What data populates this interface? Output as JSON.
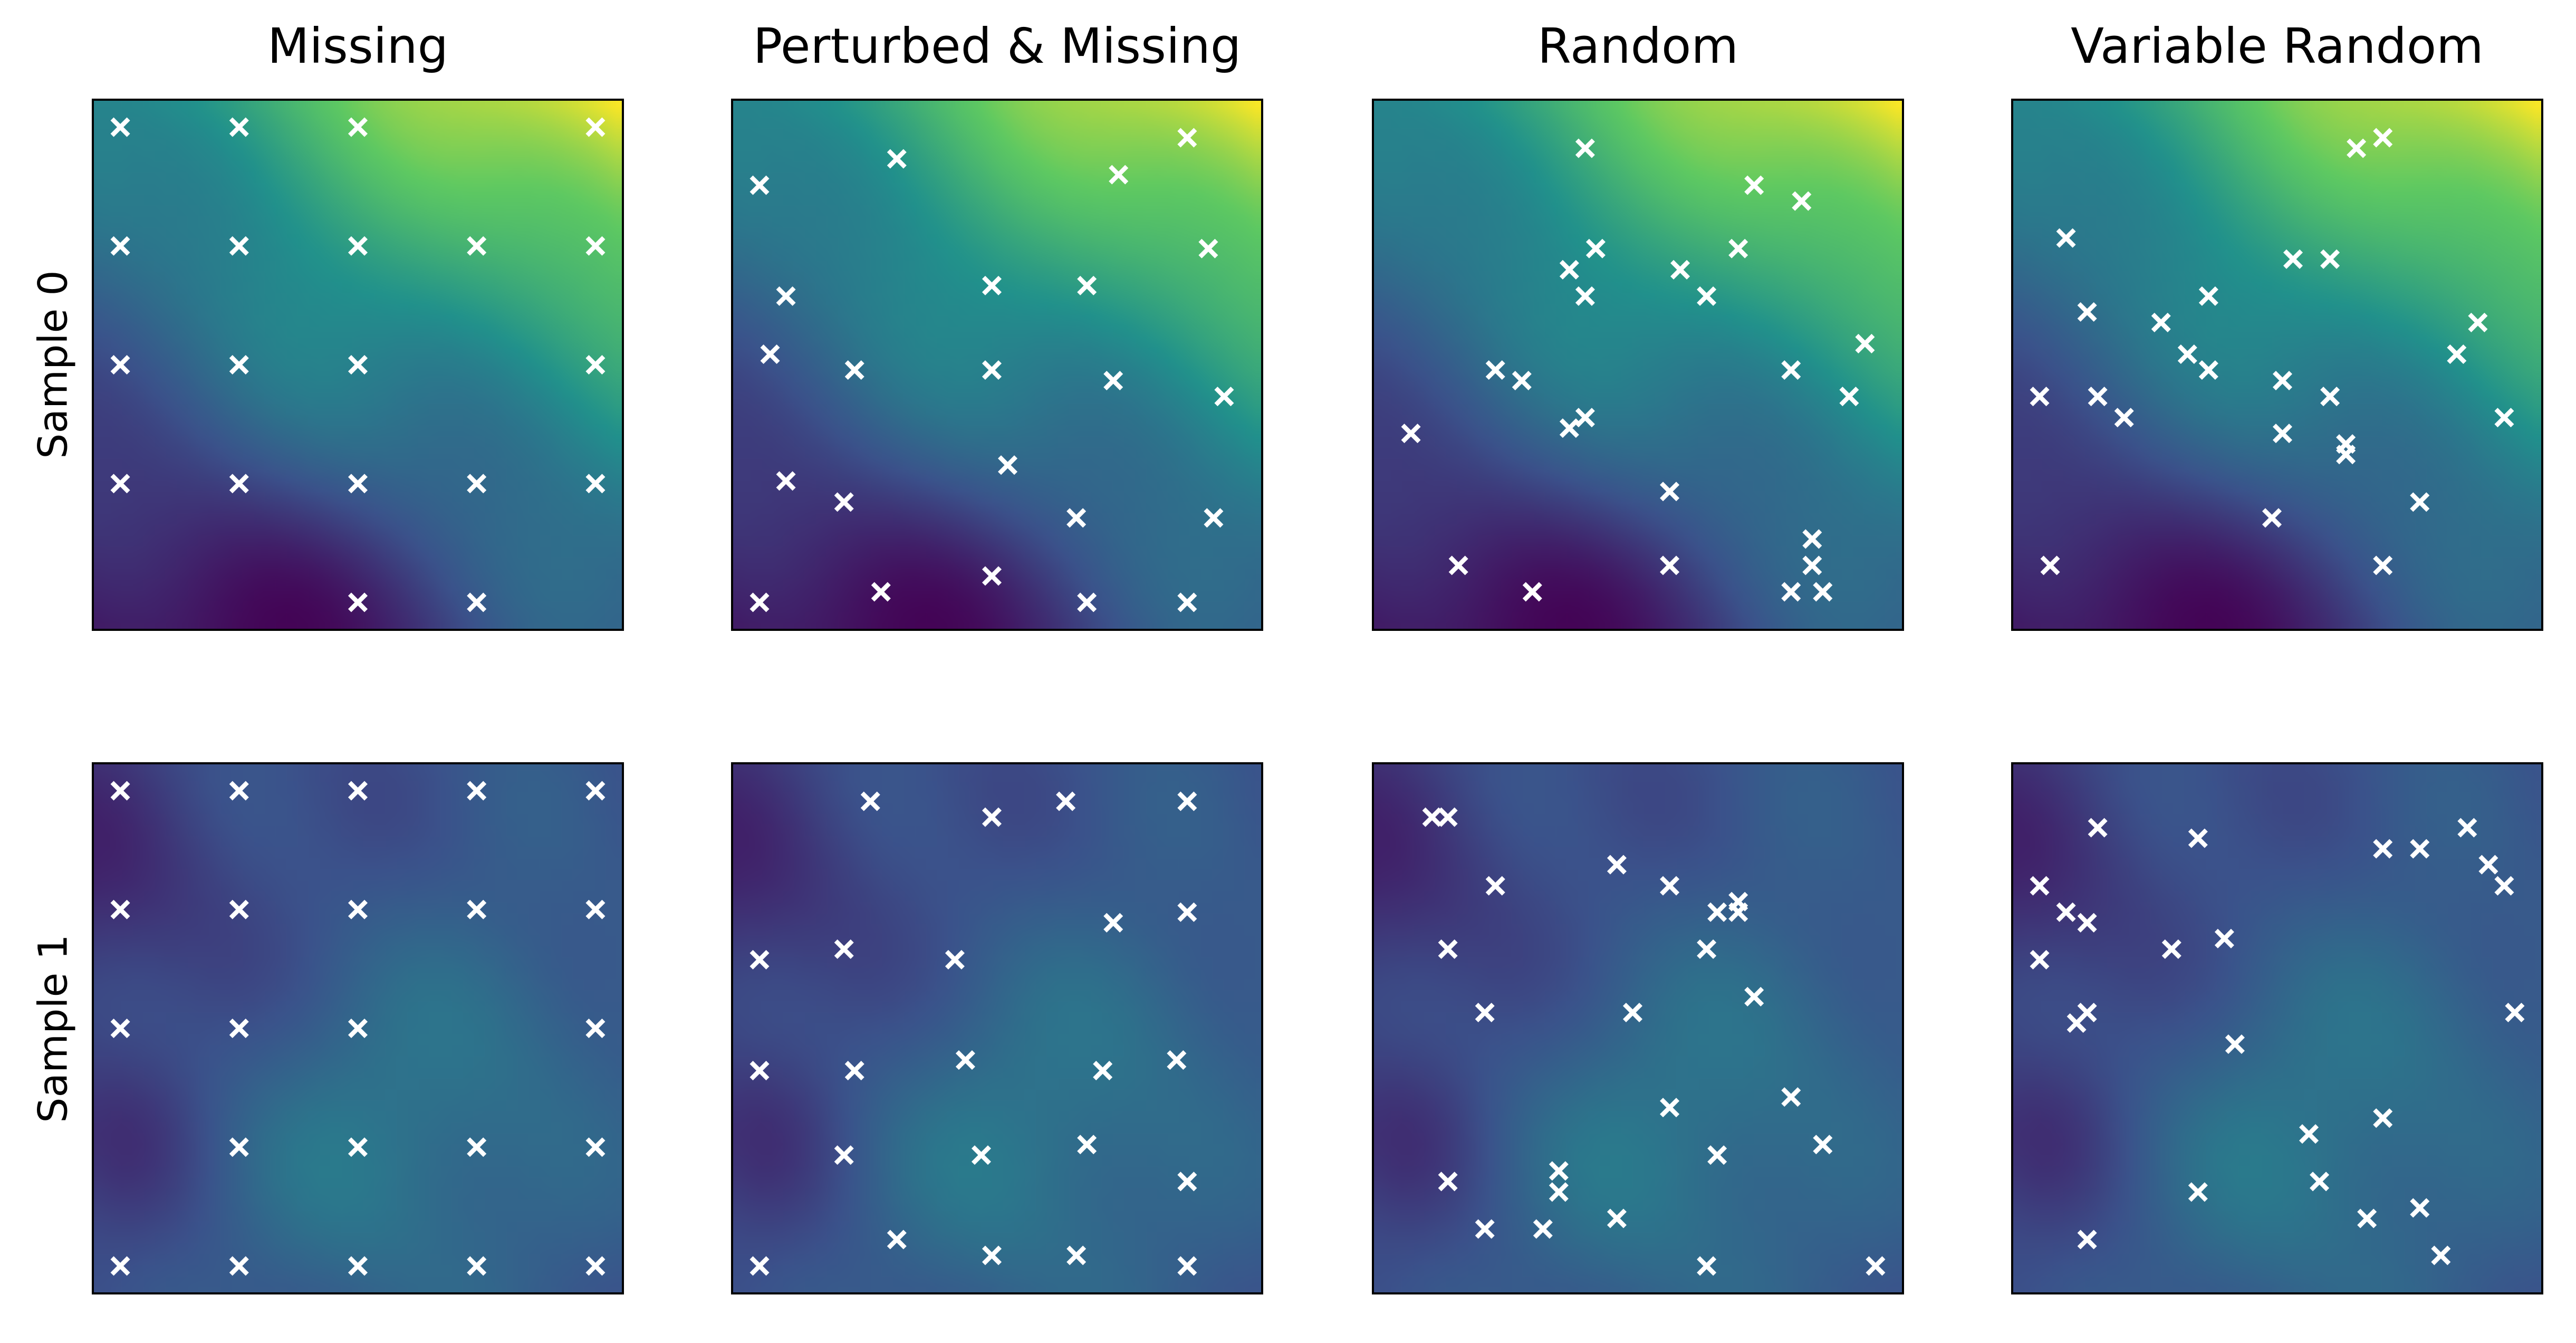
{
  "chart_data": {
    "type": "scatter",
    "description_of_axes": "hidden axes, data units 0-100 on both x and y (y up), markers drawn as white x over heatmap",
    "column_titles": [
      "Missing",
      "Perturbed & Missing",
      "Random",
      "Variable Random"
    ],
    "row_labels": [
      "Sample 0",
      "Sample 1"
    ],
    "xlim": [
      0,
      100
    ],
    "ylim": [
      0,
      100
    ],
    "marker_color": "#ffffff",
    "colormap": "viridis",
    "panels": [
      {
        "row": 0,
        "col": 0,
        "title": "Missing",
        "points": [
          [
            5,
            95
          ],
          [
            27.5,
            95
          ],
          [
            50,
            95
          ],
          [
            95,
            95
          ],
          [
            5,
            72.5
          ],
          [
            27.5,
            72.5
          ],
          [
            50,
            72.5
          ],
          [
            72.5,
            72.5
          ],
          [
            95,
            72.5
          ],
          [
            5,
            50
          ],
          [
            27.5,
            50
          ],
          [
            50,
            50
          ],
          [
            95,
            50
          ],
          [
            5,
            27.5
          ],
          [
            27.5,
            27.5
          ],
          [
            50,
            27.5
          ],
          [
            72.5,
            27.5
          ],
          [
            95,
            27.5
          ],
          [
            50,
            5
          ],
          [
            72.5,
            5
          ]
        ]
      },
      {
        "row": 0,
        "col": 1,
        "title": "Perturbed & Missing",
        "points": [
          [
            86,
            93
          ],
          [
            73,
            86
          ],
          [
            31,
            89
          ],
          [
            5,
            84
          ],
          [
            90,
            72
          ],
          [
            10,
            63
          ],
          [
            49,
            65
          ],
          [
            67,
            65
          ],
          [
            7,
            52
          ],
          [
            23,
            49
          ],
          [
            49,
            49
          ],
          [
            72,
            47
          ],
          [
            93,
            44
          ],
          [
            52,
            31
          ],
          [
            10,
            28
          ],
          [
            21,
            24
          ],
          [
            65,
            21
          ],
          [
            91,
            21
          ],
          [
            49,
            10
          ],
          [
            28,
            7
          ],
          [
            5,
            5
          ],
          [
            67,
            5
          ],
          [
            86,
            5
          ]
        ]
      },
      {
        "row": 0,
        "col": 2,
        "title": "Random",
        "points": [
          [
            40,
            91
          ],
          [
            72,
            84
          ],
          [
            81,
            81
          ],
          [
            42,
            72
          ],
          [
            69,
            72
          ],
          [
            37,
            68
          ],
          [
            58,
            68
          ],
          [
            40,
            63
          ],
          [
            63,
            63
          ],
          [
            93,
            54
          ],
          [
            23,
            49
          ],
          [
            28,
            47
          ],
          [
            79,
            49
          ],
          [
            90,
            44
          ],
          [
            40,
            40
          ],
          [
            37,
            38
          ],
          [
            7,
            37
          ],
          [
            56,
            26
          ],
          [
            83,
            17
          ],
          [
            16,
            12
          ],
          [
            56,
            12
          ],
          [
            83,
            12
          ],
          [
            30,
            7
          ],
          [
            79,
            7
          ],
          [
            85,
            7
          ]
        ]
      },
      {
        "row": 0,
        "col": 3,
        "title": "Variable Random",
        "points": [
          [
            65,
            91
          ],
          [
            70,
            93
          ],
          [
            10,
            74
          ],
          [
            53,
            70
          ],
          [
            60,
            70
          ],
          [
            14,
            60
          ],
          [
            37,
            63
          ],
          [
            28,
            58
          ],
          [
            88,
            58
          ],
          [
            33,
            52
          ],
          [
            37,
            49
          ],
          [
            84,
            52
          ],
          [
            5,
            44
          ],
          [
            16,
            44
          ],
          [
            51,
            47
          ],
          [
            60,
            44
          ],
          [
            21,
            40
          ],
          [
            93,
            40
          ],
          [
            51,
            37
          ],
          [
            63,
            35
          ],
          [
            63,
            33
          ],
          [
            77,
            24
          ],
          [
            49,
            21
          ],
          [
            7,
            12
          ],
          [
            70,
            12
          ]
        ]
      },
      {
        "row": 1,
        "col": 0,
        "title": "Missing",
        "points": [
          [
            5,
            95
          ],
          [
            27.5,
            95
          ],
          [
            50,
            95
          ],
          [
            72.5,
            95
          ],
          [
            95,
            95
          ],
          [
            5,
            72.5
          ],
          [
            27.5,
            72.5
          ],
          [
            50,
            72.5
          ],
          [
            72.5,
            72.5
          ],
          [
            95,
            72.5
          ],
          [
            5,
            50
          ],
          [
            27.5,
            50
          ],
          [
            50,
            50
          ],
          [
            95,
            50
          ],
          [
            27.5,
            27.5
          ],
          [
            50,
            27.5
          ],
          [
            72.5,
            27.5
          ],
          [
            95,
            27.5
          ],
          [
            5,
            5
          ],
          [
            27.5,
            5
          ],
          [
            50,
            5
          ],
          [
            72.5,
            5
          ],
          [
            95,
            5
          ]
        ]
      },
      {
        "row": 1,
        "col": 1,
        "title": "Perturbed & Missing",
        "points": [
          [
            26,
            93
          ],
          [
            49,
            90
          ],
          [
            63,
            93
          ],
          [
            86,
            93
          ],
          [
            86,
            72
          ],
          [
            72,
            70
          ],
          [
            21,
            65
          ],
          [
            42,
            63
          ],
          [
            5,
            63
          ],
          [
            44,
            44
          ],
          [
            5,
            42
          ],
          [
            23,
            42
          ],
          [
            84,
            44
          ],
          [
            70,
            42
          ],
          [
            67,
            28
          ],
          [
            21,
            26
          ],
          [
            47,
            26
          ],
          [
            86,
            21
          ],
          [
            31,
            10
          ],
          [
            49,
            7
          ],
          [
            65,
            7
          ],
          [
            5,
            5
          ],
          [
            86,
            5
          ]
        ]
      },
      {
        "row": 1,
        "col": 2,
        "title": "Random",
        "points": [
          [
            11,
            90
          ],
          [
            14,
            90
          ],
          [
            46,
            81
          ],
          [
            23,
            77
          ],
          [
            56,
            77
          ],
          [
            65,
            72
          ],
          [
            69,
            74
          ],
          [
            69,
            72
          ],
          [
            14,
            65
          ],
          [
            63,
            65
          ],
          [
            21,
            53
          ],
          [
            49,
            53
          ],
          [
            72,
            56
          ],
          [
            79,
            37
          ],
          [
            56,
            35
          ],
          [
            85,
            28
          ],
          [
            65,
            26
          ],
          [
            14,
            21
          ],
          [
            35,
            23
          ],
          [
            35,
            19
          ],
          [
            46,
            14
          ],
          [
            21,
            12
          ],
          [
            32,
            12
          ],
          [
            63,
            5
          ],
          [
            95,
            5
          ]
        ]
      },
      {
        "row": 1,
        "col": 3,
        "title": "Variable Random",
        "points": [
          [
            16,
            88
          ],
          [
            35,
            86
          ],
          [
            86,
            88
          ],
          [
            70,
            84
          ],
          [
            77,
            84
          ],
          [
            90,
            81
          ],
          [
            93,
            77
          ],
          [
            5,
            77
          ],
          [
            10,
            72
          ],
          [
            14,
            70
          ],
          [
            40,
            67
          ],
          [
            30,
            65
          ],
          [
            5,
            63
          ],
          [
            14,
            53
          ],
          [
            12,
            51
          ],
          [
            95,
            53
          ],
          [
            42,
            47
          ],
          [
            70,
            33
          ],
          [
            56,
            30
          ],
          [
            58,
            21
          ],
          [
            35,
            19
          ],
          [
            77,
            16
          ],
          [
            67,
            14
          ],
          [
            81,
            7
          ],
          [
            14,
            10
          ]
        ]
      }
    ]
  }
}
